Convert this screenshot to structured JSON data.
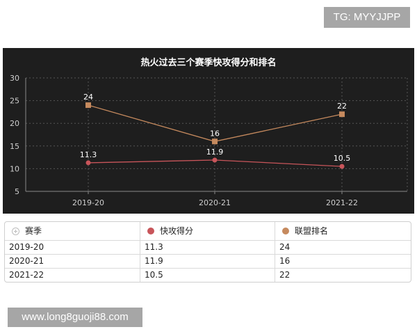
{
  "watermarks": {
    "top": "TG: MYYJJPP",
    "bottom": "www.long8guoji88.com"
  },
  "chart_data": {
    "type": "line",
    "title": "热火过去三个赛季快攻得分和排名",
    "categories": [
      "2019-20",
      "2020-21",
      "2021-22"
    ],
    "series": [
      {
        "name": "快攻得分",
        "values": [
          11.3,
          11.9,
          10.5
        ],
        "color": "#c8555a",
        "marker": "circle"
      },
      {
        "name": "联盟排名",
        "values": [
          24,
          16,
          22
        ],
        "color": "#c68a5e",
        "marker": "square"
      }
    ],
    "ylim": [
      5,
      30
    ],
    "yticks": [
      5,
      10,
      15,
      20,
      25,
      30
    ],
    "grid": true,
    "xlabel": "",
    "ylabel": ""
  },
  "table": {
    "header": {
      "col0": "赛季",
      "col1": "快攻得分",
      "col2": "联盟排名"
    },
    "rows": [
      [
        "2019-20",
        "11.3",
        "24"
      ],
      [
        "2020-21",
        "11.9",
        "16"
      ],
      [
        "2021-22",
        "10.5",
        "22"
      ]
    ]
  }
}
